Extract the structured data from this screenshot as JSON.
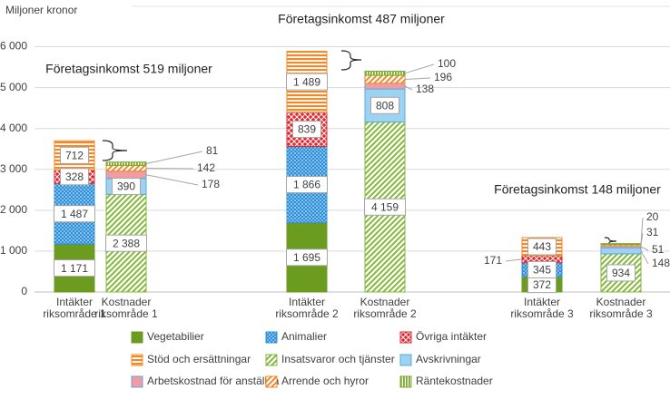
{
  "chart_data": {
    "type": "stacked_bar",
    "y_label": "Miljoner kronor",
    "annotations": [
      "Företagsinkomst 519 miljoner",
      "Företagsinkomst 487 miljoner",
      "Företagsinkomst 148 miljoner"
    ],
    "categories": [
      "Intäkter riksområde 1",
      "Kostnader riksområde 1",
      "Intäkter riksområde 2",
      "Kostnader riksområde 2",
      "Intäkter riksområde 3",
      "Kostnader riksområde 3"
    ],
    "ylim": [
      0,
      6500
    ],
    "yticks": [
      0,
      {
        "value": 1000,
        "label": "1 000"
      },
      {
        "value": 2000,
        "label": "2 000"
      },
      {
        "value": 3000,
        "label": "3 000"
      },
      {
        "value": 4000,
        "label": "4 000"
      },
      {
        "value": 5000,
        "label": "5 000"
      },
      {
        "value": 6000,
        "label": "6 000"
      }
    ],
    "grid": true,
    "legend": "bottom",
    "series": [
      {
        "name": "Vegetabilier",
        "color": "#6b9c1f",
        "pattern": "solid",
        "values": [
          1171,
          null,
          1695,
          null,
          372,
          null
        ],
        "value_labels": [
          "1 171",
          null,
          "1 695",
          null,
          "372",
          null
        ]
      },
      {
        "name": "Animalier",
        "color": "#2e8fd9",
        "pattern": "dots",
        "values": [
          1487,
          null,
          1866,
          null,
          345,
          null
        ],
        "value_labels": [
          "1 487",
          null,
          "1 866",
          null,
          "345",
          null
        ]
      },
      {
        "name": "Övriga intäkter",
        "color": "#e3262f",
        "pattern": "cross",
        "values": [
          328,
          null,
          839,
          null,
          171,
          null
        ],
        "value_labels": [
          "328",
          null,
          "839",
          null,
          "171",
          null
        ]
      },
      {
        "name": "Stöd och ersättningar",
        "color": "#ee8a2a",
        "pattern": "hstripes",
        "values": [
          712,
          null,
          1489,
          null,
          443,
          null
        ],
        "value_labels": [
          "712",
          null,
          "1 489",
          null,
          "443",
          null
        ]
      },
      {
        "name": "Insatsvaror och tjänster",
        "color": "#84b83a",
        "pattern": "diag",
        "values": [
          null,
          2388,
          null,
          4159,
          null,
          934
        ],
        "value_labels": [
          null,
          "2 388",
          null,
          "4 159",
          null,
          "934"
        ]
      },
      {
        "name": "Avskrivningar",
        "color": "#9dd2f1",
        "pattern": "light",
        "values": [
          null,
          390,
          null,
          808,
          null,
          148
        ],
        "value_labels": [
          null,
          "390",
          null,
          "808",
          null,
          "148"
        ]
      },
      {
        "name": "Arbetskostnad för anställda",
        "color": "#f29ba3",
        "pattern": "light",
        "values": [
          null,
          178,
          null,
          138,
          null,
          51
        ],
        "value_labels": [
          null,
          "178",
          null,
          "138",
          null,
          "51"
        ]
      },
      {
        "name": "Arrende och hyror",
        "color": "#ee8a2a",
        "pattern": "diag",
        "values": [
          null,
          142,
          null,
          196,
          null,
          31
        ],
        "value_labels": [
          null,
          "142",
          null,
          "196",
          null,
          "31"
        ]
      },
      {
        "name": "Räntekostnader",
        "color": "#7bac2e",
        "pattern": "vstripes",
        "values": [
          null,
          81,
          null,
          100,
          null,
          20
        ],
        "value_labels": [
          null,
          "81",
          null,
          "100",
          null,
          "20"
        ]
      }
    ]
  }
}
